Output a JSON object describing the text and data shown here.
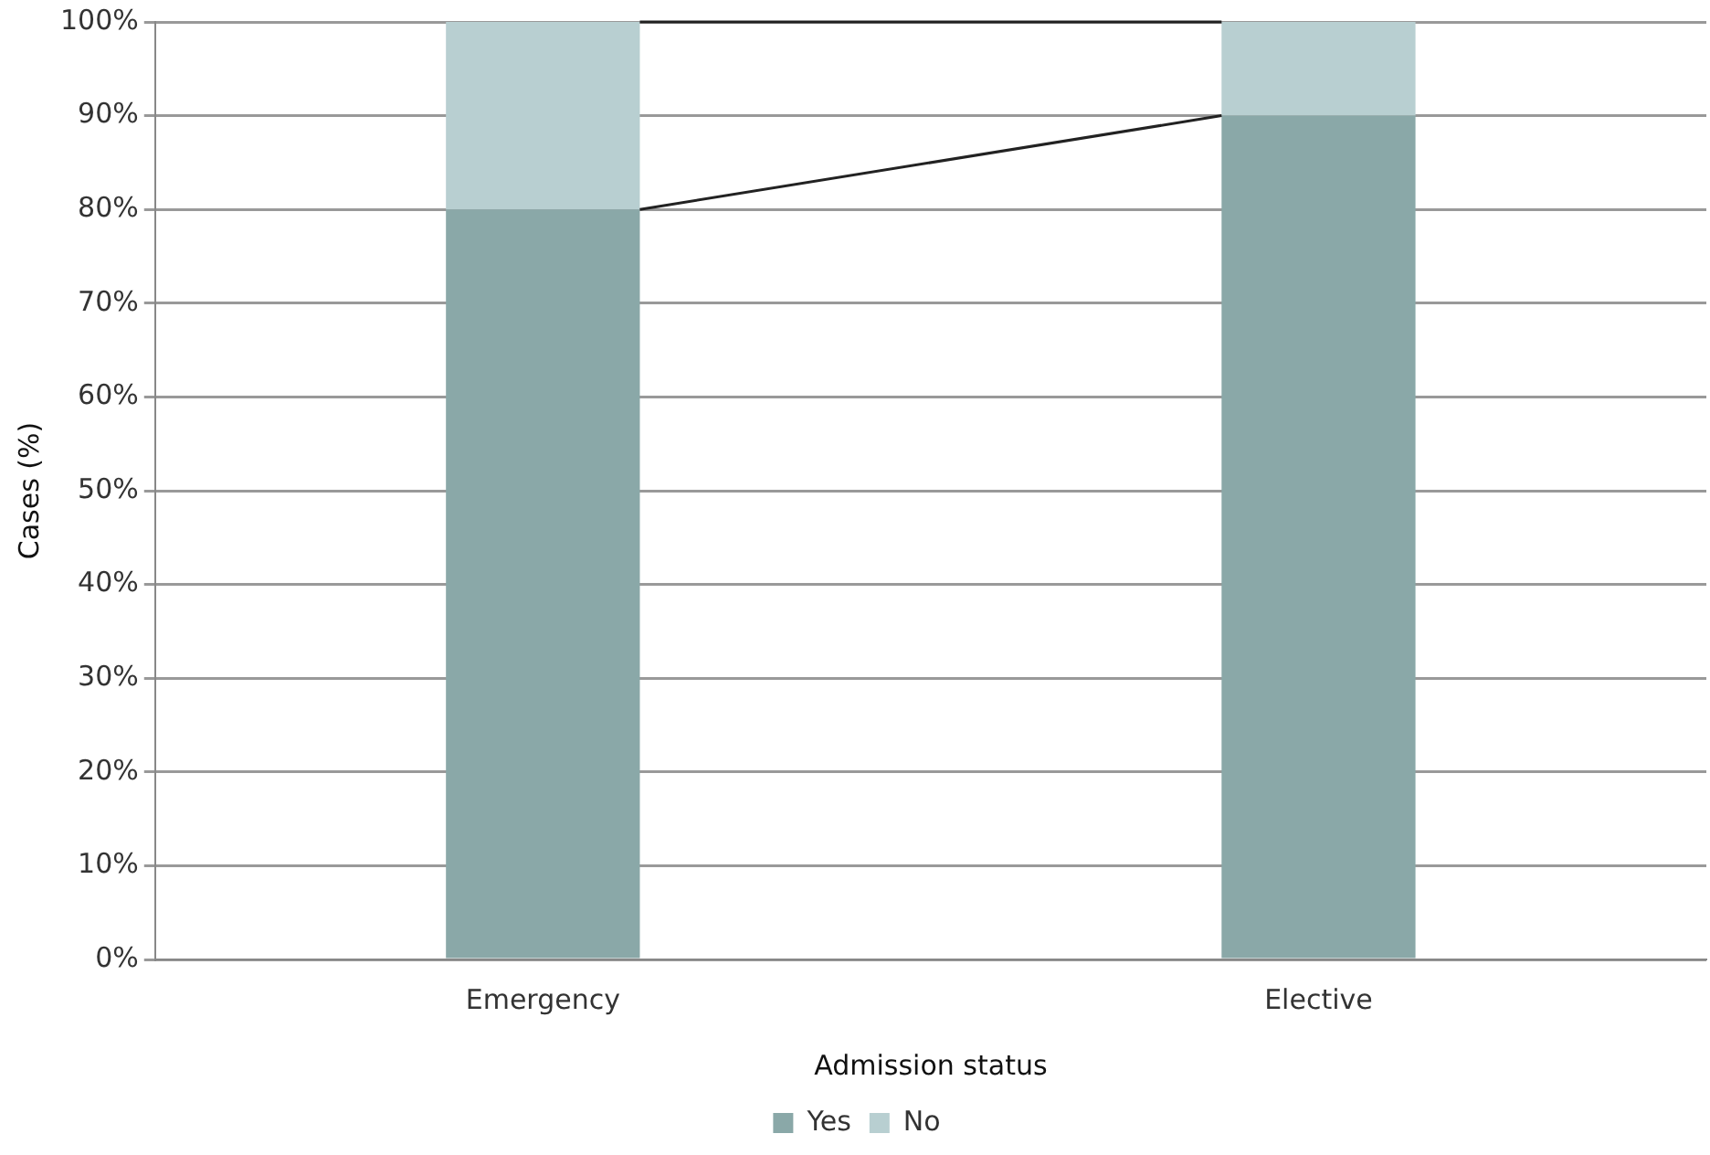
{
  "chart_data": {
    "type": "bar",
    "stacked": true,
    "xlabel": "Admission status",
    "ylabel": "Cases (%)",
    "categories": [
      "Emergency",
      "Elective"
    ],
    "series": [
      {
        "name": "Yes",
        "color": "#8aa8a8",
        "values": [
          80,
          90
        ]
      },
      {
        "name": "No",
        "color": "#b8cfd1",
        "values": [
          20,
          10
        ]
      }
    ],
    "ylim": [
      0,
      100
    ],
    "yticks": [
      {
        "value": 0,
        "label": "0%"
      },
      {
        "value": 10,
        "label": "10%"
      },
      {
        "value": 20,
        "label": "20%"
      },
      {
        "value": 30,
        "label": "30%"
      },
      {
        "value": 40,
        "label": "40%"
      },
      {
        "value": 50,
        "label": "50%"
      },
      {
        "value": 60,
        "label": "60%"
      },
      {
        "value": 70,
        "label": "70%"
      },
      {
        "value": 80,
        "label": "80%"
      },
      {
        "value": 90,
        "label": "90%"
      },
      {
        "value": 100,
        "label": "100%"
      }
    ],
    "grid": "y",
    "legend": "bottom"
  }
}
